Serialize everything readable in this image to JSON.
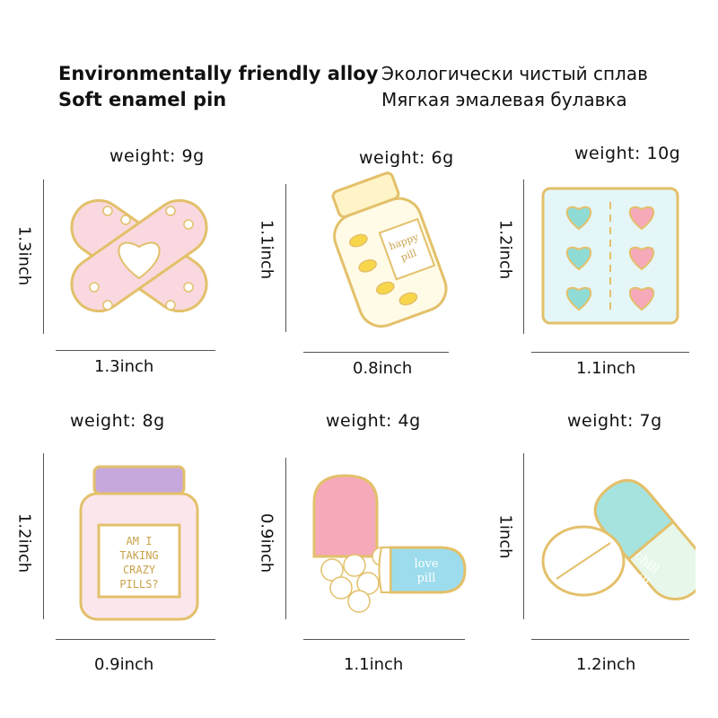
{
  "header": {
    "en_line1": "Environmentally friendly alloy",
    "en_line2": "Soft enamel pin",
    "ru_line1": "Экологически чистый сплав",
    "ru_line2": "Мягкая эмалевая булавка"
  },
  "pins": [
    {
      "name": "bandage",
      "weight": "weight:  9g",
      "height": "1.3inch",
      "width": "1.3inch"
    },
    {
      "name": "happy-pill-bottle",
      "weight": "weight:  6g",
      "height": "1.1inch",
      "width": "0.8inch",
      "text1": "happy",
      "text2": "pill"
    },
    {
      "name": "heart-blister-pack",
      "weight": "weight:  10g",
      "height": "1.2inch",
      "width": "1.1inch"
    },
    {
      "name": "crazy-pills-jar",
      "weight": "weight:  8g",
      "height": "1.2inch",
      "width": "0.9inch",
      "text1": "AM I",
      "text2": "TAKING",
      "text3": "CRAZY",
      "text4": "PILLS?"
    },
    {
      "name": "love-pill-capsule",
      "weight": "weight:  4g",
      "height": "0.9inch",
      "width": "1.1inch",
      "text1": "love",
      "text2": "pill"
    },
    {
      "name": "chill-pill-capsule",
      "weight": "weight:  7g",
      "height": "1inch",
      "width": "1.2inch",
      "text1": "chill",
      "text2": "pill"
    }
  ],
  "colors": {
    "gold": "#e3c06a",
    "pink": "#f9d4dc",
    "mint": "#a6e3de",
    "yellow": "#f7d64a",
    "lilac": "#c7a8dc",
    "blue": "#8fd6e8"
  }
}
